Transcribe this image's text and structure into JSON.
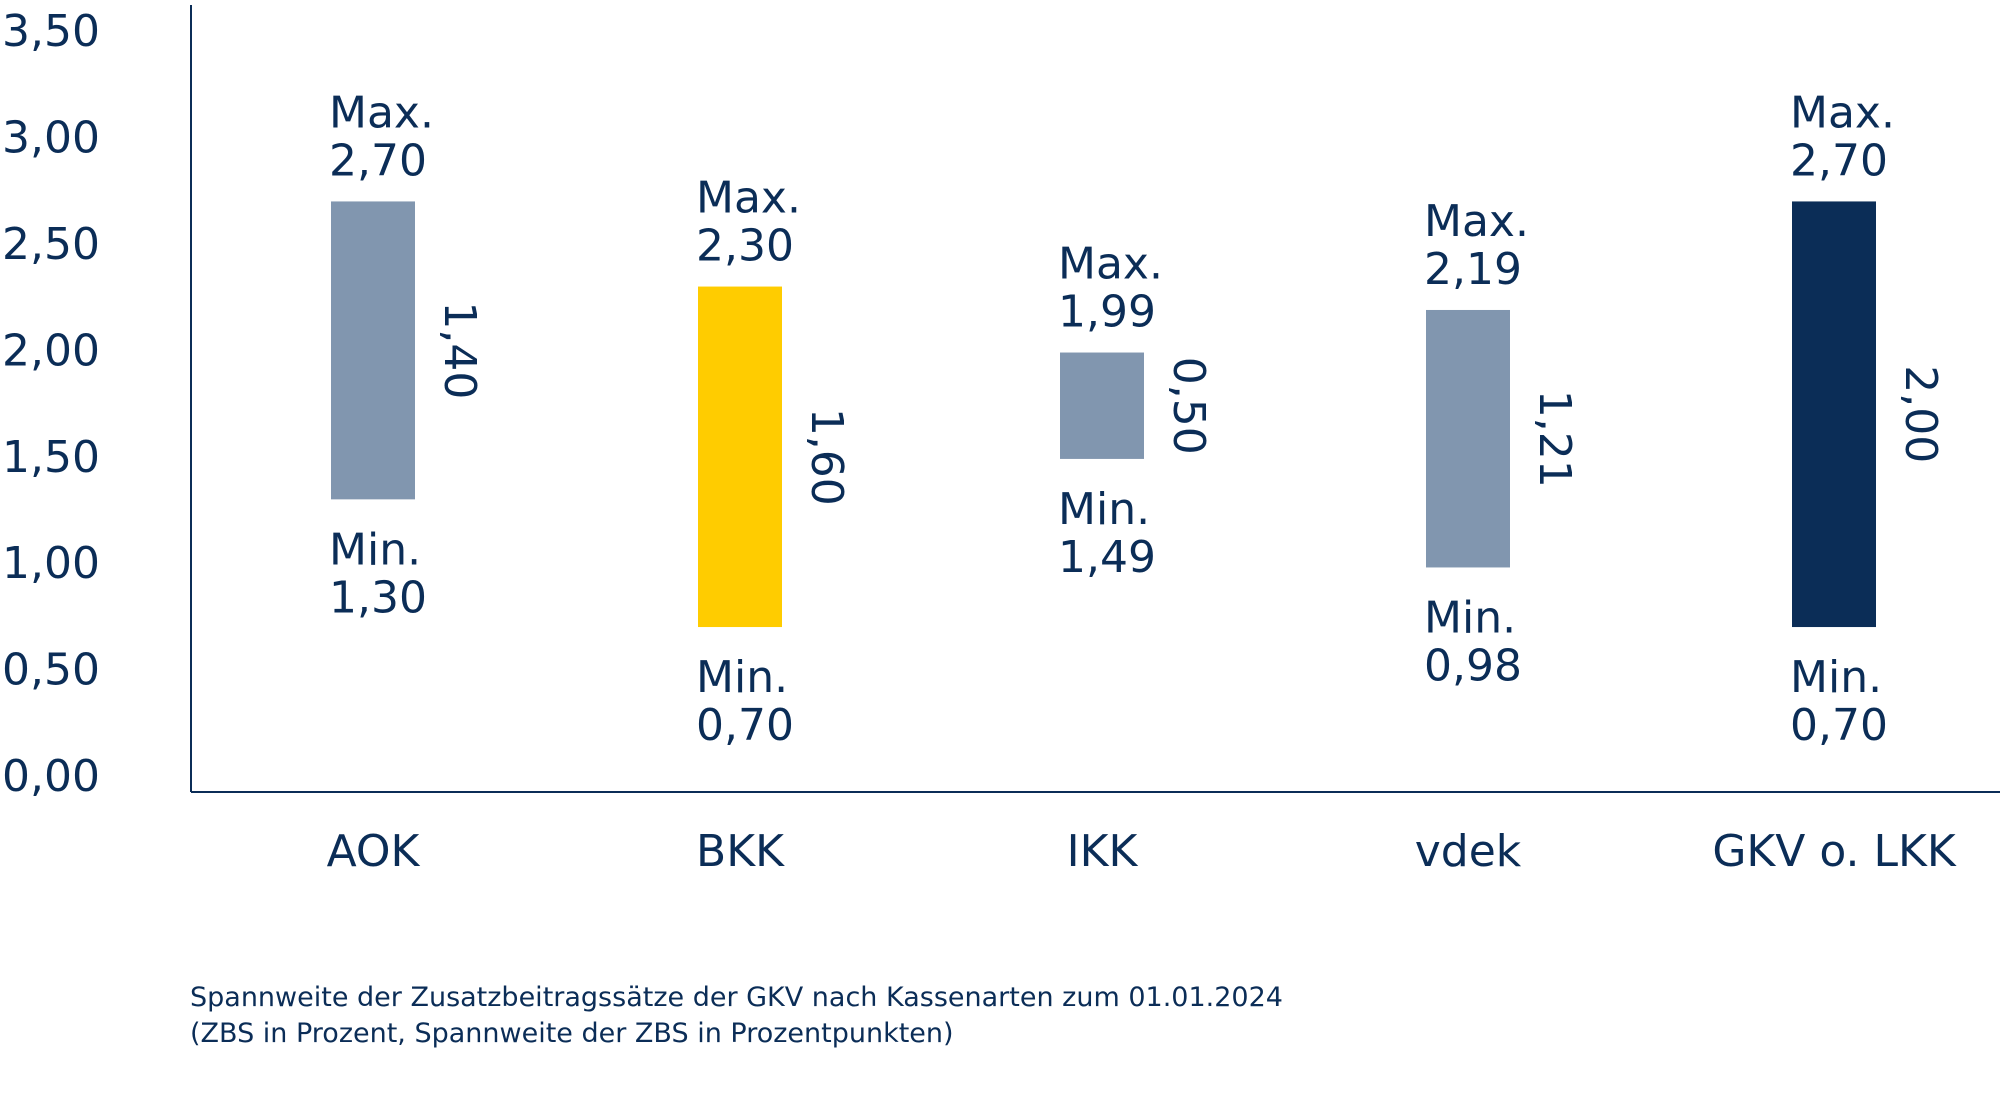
{
  "caption": {
    "line1": "Spannweite der Zusatzbeitragssätze der GKV nach Kassenarten zum 01.01.2024",
    "line2": "(ZBS in Prozent, Spannweite der ZBS in Prozentpunkten)"
  },
  "chart_data": {
    "type": "bar",
    "title": "",
    "xlabel": "",
    "ylabel": "",
    "ylim": [
      0,
      3.5
    ],
    "yticks": [
      "0,00",
      "0,50",
      "1,00",
      "1,50",
      "2,00",
      "2,50",
      "3,00",
      "3,50"
    ],
    "ytick_values": [
      0,
      0.5,
      1.0,
      1.5,
      2.0,
      2.5,
      3.0,
      3.5
    ],
    "grid": false,
    "min_prefix": "Min.",
    "max_prefix": "Max.",
    "categories": [
      "AOK",
      "BKK",
      "IKK",
      "vdek",
      "GKV o. LKK"
    ],
    "series": [
      {
        "min": [
          1.3,
          0.7,
          1.49,
          0.98,
          0.7
        ],
        "max": [
          2.7,
          2.3,
          1.99,
          2.19,
          2.7
        ],
        "min_labels": [
          "1,30",
          "0,70",
          "1,49",
          "0,98",
          "0,70"
        ],
        "max_labels": [
          "2,70",
          "2,30",
          "1,99",
          "2,19",
          "2,70"
        ],
        "span_labels": [
          "1,40",
          "1,60",
          "0,50",
          "1,21",
          "2,00"
        ],
        "colors": [
          "#8196af",
          "#ffcc00",
          "#8196af",
          "#8196af",
          "#0b2d57"
        ]
      }
    ],
    "colors": {
      "text": "#0b2d57",
      "axis": "#0b2d57"
    }
  }
}
